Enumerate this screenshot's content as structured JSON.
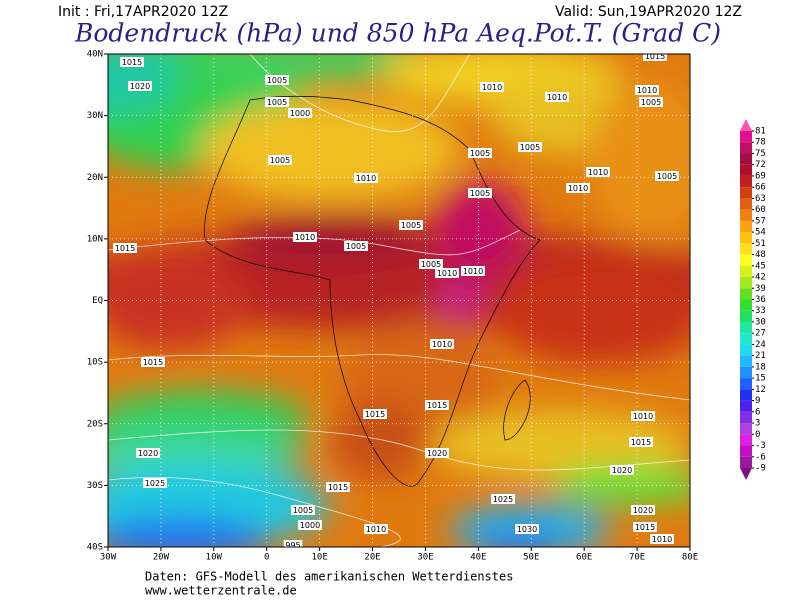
{
  "header": {
    "init": "Init : Fri,17APR2020 12Z",
    "valid": "Valid: Sun,19APR2020 12Z",
    "title": "Bodendruck (hPa) und 850 hPa Aeq.Pot.T. (Grad C)"
  },
  "map": {
    "lon_labels": [
      "30W",
      "20W",
      "10W",
      "0",
      "10E",
      "20E",
      "30E",
      "40E",
      "50E",
      "60E",
      "70E",
      "80E"
    ],
    "lat_labels": [
      "40N",
      "30N",
      "20N",
      "10N",
      "EQ",
      "10S",
      "20S",
      "30S",
      "40S"
    ],
    "isobar_labels": [
      "1015",
      "1020",
      "1005",
      "1005",
      "1000",
      "1010",
      "1010",
      "1015",
      "1010",
      "1005",
      "1005",
      "1010",
      "1005",
      "1005",
      "1005",
      "1010",
      "1010",
      "1005",
      "1015",
      "1010",
      "1005",
      "1005",
      "1005",
      "1010",
      "1010",
      "1010",
      "1015",
      "1015",
      "1015",
      "1010",
      "1015",
      "1020",
      "1020",
      "1020",
      "1025",
      "1015",
      "1025",
      "1020",
      "1005",
      "1000",
      "1010",
      "1030",
      "1015",
      "1010",
      "995"
    ]
  },
  "colorbar": {
    "ticks": [
      81,
      78,
      75,
      72,
      69,
      66,
      63,
      60,
      57,
      54,
      51,
      48,
      45,
      42,
      39,
      36,
      33,
      30,
      27,
      24,
      21,
      18,
      15,
      12,
      9,
      6,
      3,
      0,
      -3,
      -6,
      -9
    ],
    "colors": [
      "#e01090",
      "#c01060",
      "#a01040",
      "#b01030",
      "#c02020",
      "#d04010",
      "#e06010",
      "#f08010",
      "#ffa010",
      "#ffc010",
      "#ffe020",
      "#ffff20",
      "#d8f020",
      "#a0e820",
      "#60e020",
      "#30e030",
      "#20e060",
      "#20e8a0",
      "#20e8c8",
      "#20d8f0",
      "#20b8ff",
      "#2090ff",
      "#2060ff",
      "#2030f0",
      "#5020f0",
      "#8030e8",
      "#b040e0",
      "#e020e0",
      "#c010c0",
      "#9a1a9a"
    ],
    "top_color": "#ff50b0",
    "bottom_color": "#7a1080"
  },
  "footer": {
    "source": "Daten: GFS-Modell des amerikanischen Wetterdienstes",
    "url": "www.wetterzentrale.de"
  }
}
